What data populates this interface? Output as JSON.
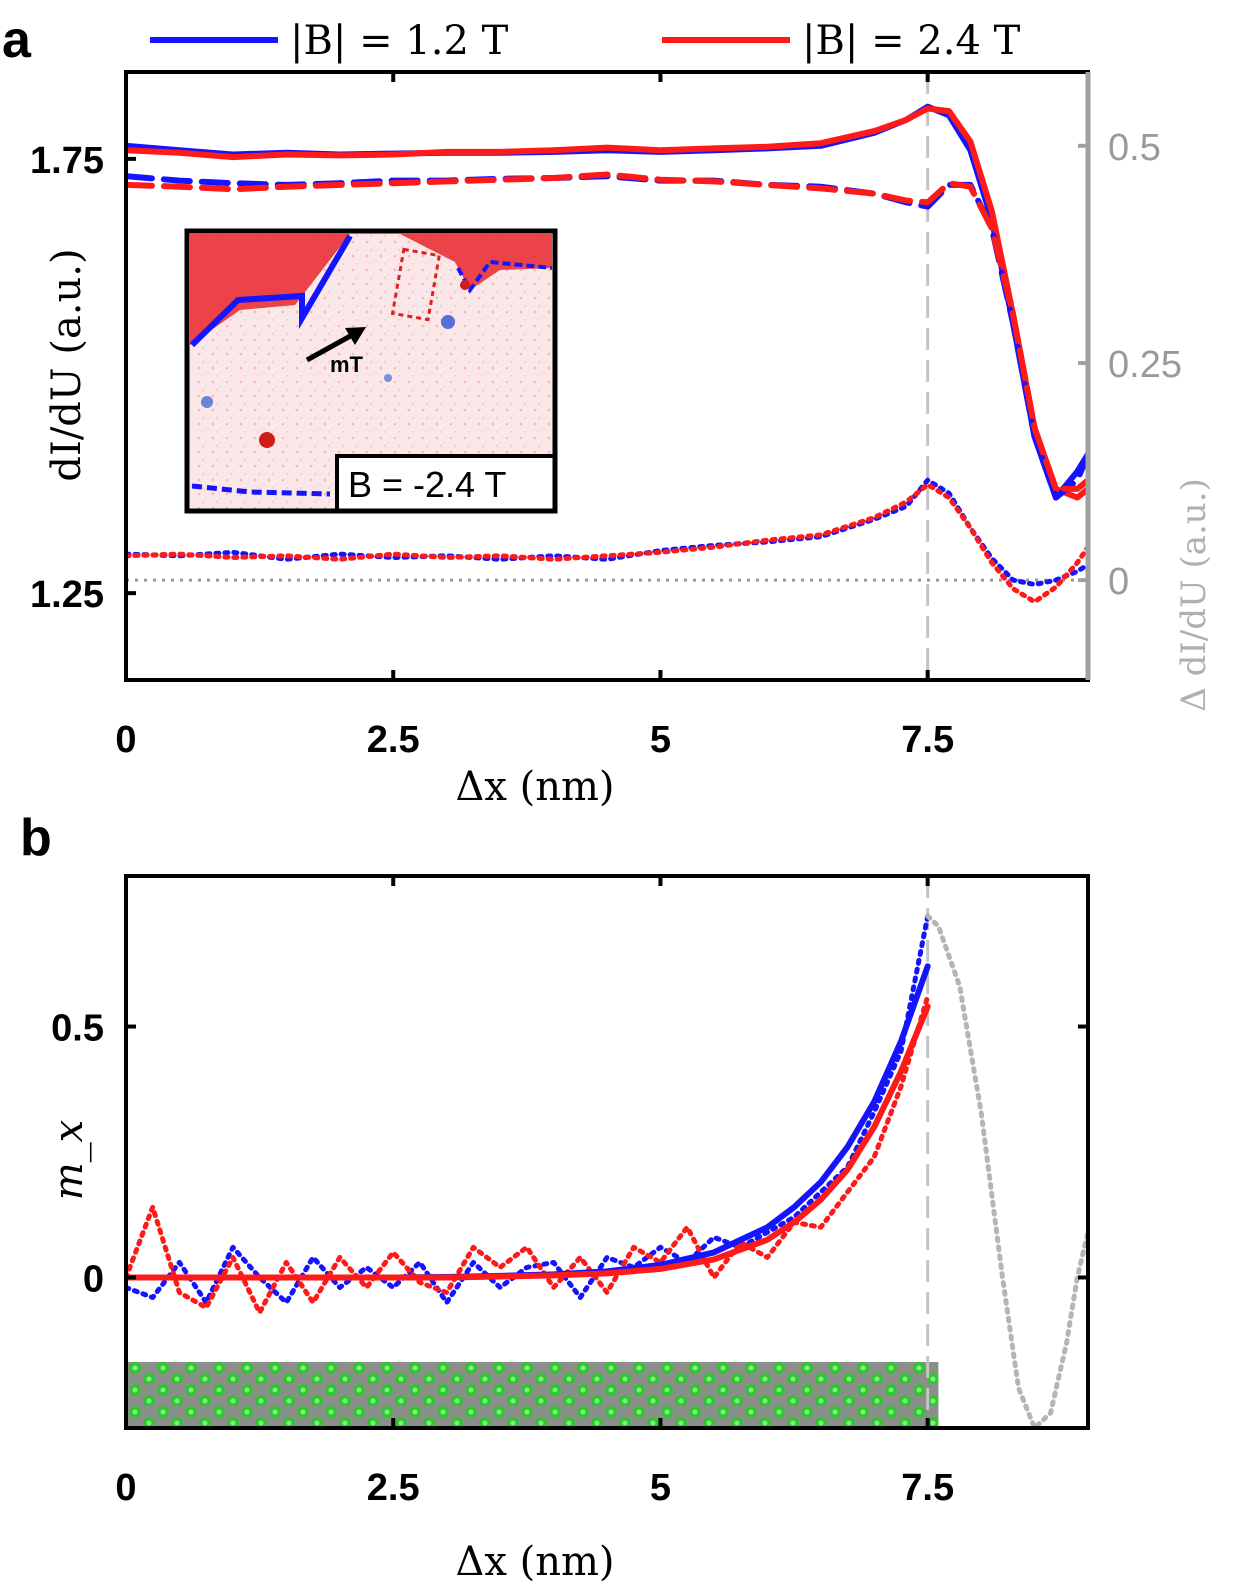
{
  "panels": {
    "a": "a",
    "b": "b"
  },
  "legend": [
    {
      "label": "|B| = 1.2 T",
      "color": "#1414ff"
    },
    {
      "label": "|B| = 2.4 T",
      "color": "#ff1a1a"
    }
  ],
  "inset": {
    "field_label": "B = -2.4 T",
    "vector_label": "mT"
  },
  "chart_data": [
    {
      "id": "a",
      "type": "line",
      "xlabel": "Δx (nm)",
      "ylabel": "dI/dU (a.u.)",
      "ylabel_right": "Δ dI/dU (a.u.)",
      "xlim": [
        0,
        9
      ],
      "ylim": [
        1.15,
        1.85
      ],
      "ylim_right": [
        -0.115,
        0.585
      ],
      "x_ticks": [
        "0",
        "2.5",
        "5",
        "7.5"
      ],
      "x_tick_values": [
        0,
        2.5,
        5,
        7.5
      ],
      "y_ticks": [
        "1.25",
        "1.75"
      ],
      "y_tick_values": [
        1.25,
        1.75
      ],
      "y_ticks_right": [
        "0",
        "0.25",
        "0.5"
      ],
      "y_tick_values_right": [
        0,
        0.25,
        0.5
      ],
      "vline_x": 7.5,
      "hline_right": 0,
      "series": [
        {
          "name": "|B| = 1.2 T solid",
          "color": "#1414ff",
          "style": "solid",
          "x": [
            0,
            0.5,
            1,
            1.5,
            2,
            2.5,
            3,
            3.5,
            4,
            4.5,
            5,
            5.5,
            6,
            6.5,
            7,
            7.3,
            7.5,
            7.7,
            7.9,
            8.1,
            8.3,
            8.5,
            8.7,
            8.9,
            9.0
          ],
          "y": [
            1.765,
            1.76,
            1.755,
            1.757,
            1.755,
            1.756,
            1.757,
            1.757,
            1.758,
            1.76,
            1.758,
            1.76,
            1.762,
            1.765,
            1.78,
            1.795,
            1.81,
            1.8,
            1.76,
            1.68,
            1.56,
            1.43,
            1.36,
            1.39,
            1.41
          ]
        },
        {
          "name": "|B| = 2.4 T solid",
          "color": "#ff1a1a",
          "style": "solid",
          "x": [
            0,
            0.5,
            1,
            1.5,
            2,
            2.5,
            3,
            3.5,
            4,
            4.5,
            5,
            5.5,
            6,
            6.5,
            7,
            7.3,
            7.5,
            7.7,
            7.9,
            8.1,
            8.3,
            8.5,
            8.7,
            8.9,
            9.0
          ],
          "y": [
            1.76,
            1.757,
            1.752,
            1.755,
            1.754,
            1.755,
            1.758,
            1.758,
            1.76,
            1.763,
            1.76,
            1.762,
            1.764,
            1.768,
            1.782,
            1.795,
            1.808,
            1.805,
            1.77,
            1.69,
            1.57,
            1.44,
            1.37,
            1.36,
            1.37
          ]
        },
        {
          "name": "|B| = 1.2 T dashed",
          "color": "#1414ff",
          "style": "dashed",
          "x": [
            0,
            0.5,
            1,
            1.5,
            2,
            2.5,
            3,
            3.5,
            4,
            4.5,
            5,
            5.5,
            6,
            6.5,
            7,
            7.3,
            7.5,
            7.7,
            7.9,
            8.1,
            8.3,
            8.5,
            8.7,
            8.9,
            9.0
          ],
          "y": [
            1.73,
            1.725,
            1.722,
            1.72,
            1.722,
            1.725,
            1.725,
            1.727,
            1.728,
            1.73,
            1.725,
            1.725,
            1.72,
            1.718,
            1.71,
            1.7,
            1.695,
            1.72,
            1.72,
            1.67,
            1.56,
            1.43,
            1.36,
            1.38,
            1.41
          ]
        },
        {
          "name": "|B| = 2.4 T dashed",
          "color": "#ff1a1a",
          "style": "dashed",
          "x": [
            0,
            0.5,
            1,
            1.5,
            2,
            2.5,
            3,
            3.5,
            4,
            4.5,
            5,
            5.5,
            6,
            6.5,
            7,
            7.3,
            7.5,
            7.7,
            7.9,
            8.1,
            8.3,
            8.5,
            8.7,
            8.9,
            9.0
          ],
          "y": [
            1.72,
            1.718,
            1.715,
            1.718,
            1.72,
            1.722,
            1.724,
            1.726,
            1.728,
            1.732,
            1.726,
            1.724,
            1.72,
            1.716,
            1.71,
            1.702,
            1.7,
            1.722,
            1.718,
            1.67,
            1.57,
            1.44,
            1.37,
            1.37,
            1.38
          ]
        },
        {
          "name": "|B| = 1.2 T difference",
          "color": "#1414ff",
          "style": "dotted",
          "axis": "right",
          "x": [
            0,
            0.5,
            1,
            1.5,
            2,
            2.5,
            3,
            3.5,
            4,
            4.5,
            5,
            5.5,
            6,
            6.5,
            7,
            7.3,
            7.5,
            7.7,
            7.9,
            8.1,
            8.3,
            8.5,
            8.7,
            8.9,
            9.0
          ],
          "y": [
            0.03,
            0.028,
            0.032,
            0.024,
            0.03,
            0.026,
            0.028,
            0.024,
            0.028,
            0.024,
            0.034,
            0.04,
            0.044,
            0.05,
            0.07,
            0.085,
            0.115,
            0.1,
            0.06,
            0.025,
            0.0,
            -0.005,
            0.0,
            0.01,
            0.018
          ]
        },
        {
          "name": "|B| = 2.4 T difference",
          "color": "#ff1a1a",
          "style": "dotted",
          "axis": "right",
          "x": [
            0,
            0.5,
            1,
            1.5,
            2,
            2.5,
            3,
            3.5,
            4,
            4.5,
            5,
            5.5,
            6,
            6.5,
            7,
            7.3,
            7.5,
            7.7,
            7.9,
            8.1,
            8.3,
            8.5,
            8.7,
            8.9,
            9.0
          ],
          "y": [
            0.028,
            0.03,
            0.026,
            0.028,
            0.024,
            0.03,
            0.026,
            0.028,
            0.024,
            0.028,
            0.032,
            0.038,
            0.046,
            0.052,
            0.072,
            0.09,
            0.11,
            0.095,
            0.06,
            0.02,
            -0.01,
            -0.025,
            -0.008,
            0.02,
            0.038
          ]
        }
      ]
    },
    {
      "id": "b",
      "type": "line",
      "xlabel": "Δx (nm)",
      "ylabel": "m_x",
      "xlim": [
        0,
        9
      ],
      "ylim": [
        -0.3,
        0.8
      ],
      "x_ticks": [
        "0",
        "2.5",
        "5",
        "7.5"
      ],
      "x_tick_values": [
        0,
        2.5,
        5,
        7.5
      ],
      "y_ticks": [
        "0",
        "0.5"
      ],
      "y_tick_values": [
        0,
        0.5
      ],
      "vline_x": 7.5,
      "lattice_until": 7.6,
      "series": [
        {
          "name": "|B| = 1.2 T data",
          "color": "#1414ff",
          "style": "dotted",
          "x": [
            0,
            0.25,
            0.5,
            0.75,
            1,
            1.25,
            1.5,
            1.75,
            2,
            2.25,
            2.5,
            2.75,
            3,
            3.25,
            3.5,
            3.75,
            4,
            4.25,
            4.5,
            4.75,
            5,
            5.25,
            5.5,
            5.75,
            6,
            6.25,
            6.5,
            6.75,
            7,
            7.25,
            7.5
          ],
          "y": [
            -0.02,
            -0.04,
            0.03,
            -0.05,
            0.06,
            0.0,
            -0.05,
            0.04,
            -0.02,
            0.02,
            -0.02,
            0.03,
            -0.05,
            0.03,
            -0.02,
            0.02,
            0.03,
            -0.04,
            0.04,
            0.02,
            0.06,
            0.03,
            0.08,
            0.06,
            0.09,
            0.12,
            0.17,
            0.22,
            0.33,
            0.45,
            0.72
          ]
        },
        {
          "name": "|B| = 2.4 T data",
          "color": "#ff1a1a",
          "style": "dotted",
          "x": [
            0,
            0.25,
            0.5,
            0.75,
            1,
            1.25,
            1.5,
            1.75,
            2,
            2.25,
            2.5,
            2.75,
            3,
            3.25,
            3.5,
            3.75,
            4,
            4.25,
            4.5,
            4.75,
            5,
            5.25,
            5.5,
            5.75,
            6,
            6.25,
            6.5,
            6.75,
            7,
            7.25,
            7.5
          ],
          "y": [
            0.0,
            0.14,
            -0.03,
            -0.06,
            0.04,
            -0.07,
            0.03,
            -0.05,
            0.04,
            -0.02,
            0.05,
            -0.01,
            -0.03,
            0.06,
            0.02,
            0.06,
            -0.02,
            0.04,
            -0.03,
            0.06,
            0.03,
            0.1,
            0.0,
            0.07,
            0.04,
            0.11,
            0.1,
            0.17,
            0.24,
            0.38,
            0.56
          ]
        },
        {
          "name": "|B| = 1.2 T fit",
          "color": "#1414ff",
          "style": "solid",
          "fit": true,
          "x": [
            0,
            0.5,
            1,
            1.5,
            2,
            2.5,
            3,
            3.5,
            4,
            4.5,
            5,
            5.5,
            6,
            6.25,
            6.5,
            6.75,
            7,
            7.25,
            7.5
          ],
          "y": [
            0.0,
            0.0,
            0.0,
            0.0,
            0.0,
            0.0,
            0.001,
            0.003,
            0.006,
            0.012,
            0.025,
            0.05,
            0.1,
            0.14,
            0.19,
            0.26,
            0.35,
            0.47,
            0.62
          ]
        },
        {
          "name": "|B| = 2.4 T fit",
          "color": "#ff1a1a",
          "style": "solid",
          "fit": true,
          "x": [
            0,
            0.5,
            1,
            1.5,
            2,
            2.5,
            3,
            3.5,
            4,
            4.5,
            5,
            5.5,
            6,
            6.25,
            6.5,
            6.75,
            7,
            7.25,
            7.5
          ],
          "y": [
            0.0,
            0.0,
            0.0,
            0.0,
            0.0,
            0.0,
            0.0,
            0.002,
            0.004,
            0.008,
            0.017,
            0.036,
            0.075,
            0.11,
            0.155,
            0.215,
            0.3,
            0.41,
            0.54
          ]
        },
        {
          "name": "dI/dU profile (grey)",
          "color": "#b5b5b5",
          "style": "dotted",
          "x": [
            7.5,
            7.6,
            7.8,
            8.0,
            8.2,
            8.35,
            8.5,
            8.65,
            8.8,
            8.9,
            9.0
          ],
          "y": [
            0.72,
            0.7,
            0.58,
            0.33,
            0.0,
            -0.22,
            -0.3,
            -0.27,
            -0.13,
            0.0,
            0.09
          ]
        }
      ]
    }
  ]
}
